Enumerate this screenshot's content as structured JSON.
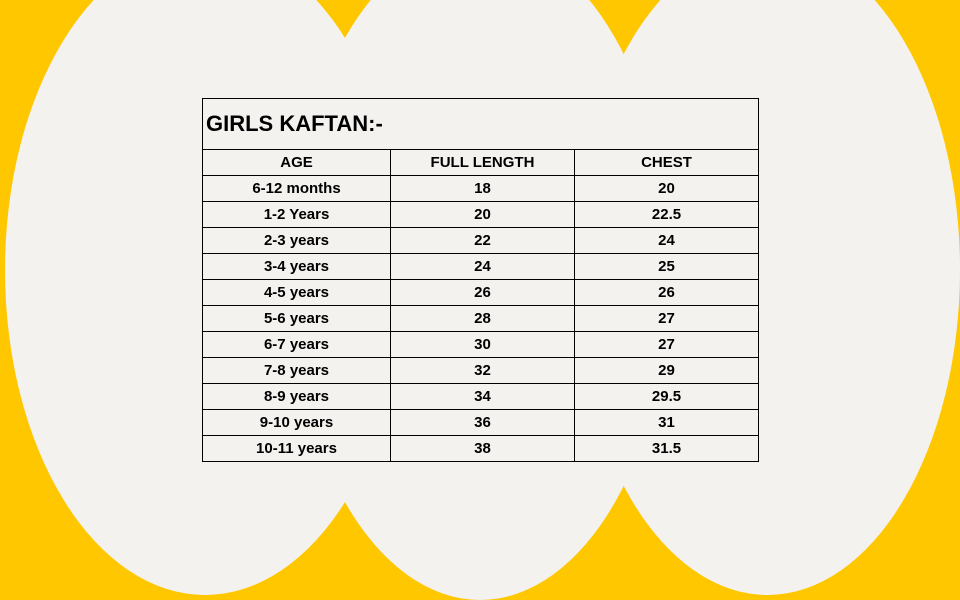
{
  "table": {
    "title": "GIRLS KAFTAN:-",
    "headers": [
      "AGE",
      "FULL LENGTH",
      "CHEST"
    ],
    "rows": [
      [
        "6-12 months",
        "18",
        "20"
      ],
      [
        "1-2 Years",
        "20",
        "22.5"
      ],
      [
        "2-3 years",
        "22",
        "24"
      ],
      [
        "3-4 years",
        "24",
        "25"
      ],
      [
        "4-5 years",
        "26",
        "26"
      ],
      [
        "5-6 years",
        "28",
        "27"
      ],
      [
        "6-7 years",
        "30",
        "27"
      ],
      [
        "7-8 years",
        "32",
        "29"
      ],
      [
        "8-9 years",
        "34",
        "29.5"
      ],
      [
        "9-10 years",
        "36",
        "31"
      ],
      [
        "10-11 years",
        "38",
        "31.5"
      ]
    ]
  },
  "colors": {
    "background": "#FFC700",
    "shapes": "#F3F2EF",
    "text": "#000000"
  }
}
